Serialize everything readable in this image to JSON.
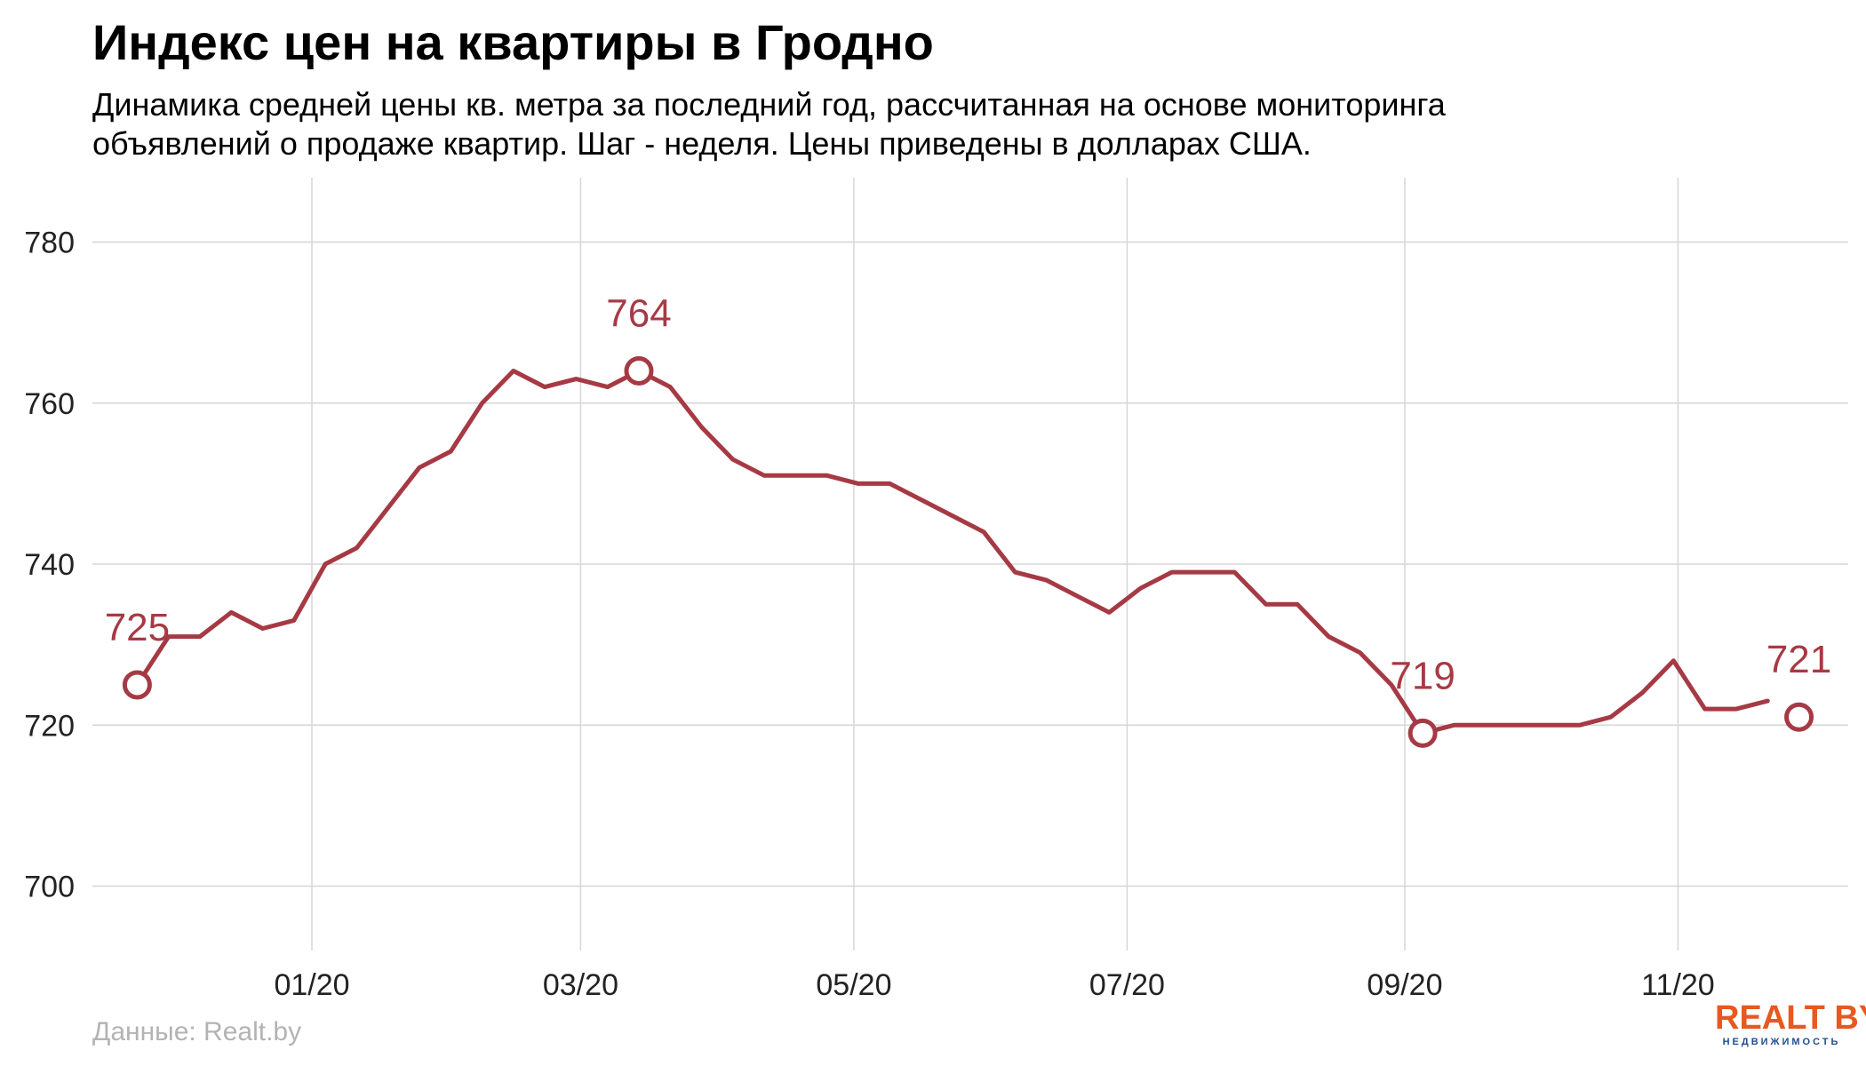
{
  "title": "Индекс цен на квартиры в Гродно",
  "subtitle_line1": "Динамика средней цены кв. метра за последний год, рассчитанная на основе мониторинга",
  "subtitle_line2": "объявлений о продаже квартир. Шаг - неделя. Цены приведены в долларах США.",
  "source": "Данные: Realt.by",
  "logo": {
    "main": "REALT BY",
    "sub": "НЕДВИЖИМОСТЬ"
  },
  "colors": {
    "line": "#a63a44",
    "grid": "#d6d6d6",
    "marker_fill": "#ffffff"
  },
  "chart_data": {
    "type": "line",
    "x_unit": "week",
    "x_tick_labels": [
      "01/20",
      "03/20",
      "05/20",
      "07/20",
      "09/20",
      "11/20"
    ],
    "x_tick_dates": [
      "2020-01-01",
      "2020-03-01",
      "2020-05-01",
      "2020-07-01",
      "2020-09-01",
      "2020-11-01"
    ],
    "y_ticks": [
      700,
      720,
      740,
      760,
      780
    ],
    "ylim": [
      692,
      788
    ],
    "xlim": [
      "2019-11-13",
      "2020-12-09"
    ],
    "grid": true,
    "series": [
      {
        "dates": [
          "2019-11-23",
          "2019-11-30",
          "2019-12-07",
          "2019-12-14",
          "2019-12-21",
          "2019-12-28",
          "2020-01-04",
          "2020-01-11",
          "2020-01-18",
          "2020-01-25",
          "2020-02-01",
          "2020-02-08",
          "2020-02-15",
          "2020-02-22",
          "2020-02-29",
          "2020-03-07",
          "2020-03-14",
          "2020-03-21",
          "2020-03-28",
          "2020-04-04",
          "2020-04-11",
          "2020-04-18",
          "2020-04-25",
          "2020-05-02",
          "2020-05-09",
          "2020-05-16",
          "2020-05-23",
          "2020-05-30",
          "2020-06-06",
          "2020-06-13",
          "2020-06-20",
          "2020-06-27",
          "2020-07-04",
          "2020-07-11",
          "2020-07-18",
          "2020-07-25",
          "2020-08-01",
          "2020-08-08",
          "2020-08-15",
          "2020-08-22",
          "2020-08-29",
          "2020-09-05",
          "2020-09-12",
          "2020-09-19",
          "2020-09-26",
          "2020-10-03",
          "2020-10-10",
          "2020-10-17",
          "2020-10-24",
          "2020-10-31",
          "2020-11-07",
          "2020-11-14",
          "2020-11-21"
        ],
        "values": [
          725,
          731,
          731,
          734,
          732,
          733,
          740,
          742,
          747,
          752,
          754,
          760,
          764,
          762,
          763,
          762,
          764,
          762,
          757,
          753,
          751,
          751,
          751,
          750,
          750,
          748,
          746,
          744,
          739,
          738,
          736,
          734,
          737,
          739,
          739,
          739,
          735,
          735,
          731,
          729,
          725,
          719,
          720,
          720,
          720,
          720,
          720,
          721,
          724,
          728,
          722,
          722,
          723
        ]
      }
    ],
    "annotations": [
      {
        "date": "2019-11-23",
        "value": 725,
        "label": "725"
      },
      {
        "date": "2020-03-14",
        "value": 764,
        "label": "764"
      },
      {
        "date": "2020-09-05",
        "value": 719,
        "label": "719"
      },
      {
        "date": "2020-11-28",
        "value": 721,
        "label": "721"
      }
    ]
  }
}
